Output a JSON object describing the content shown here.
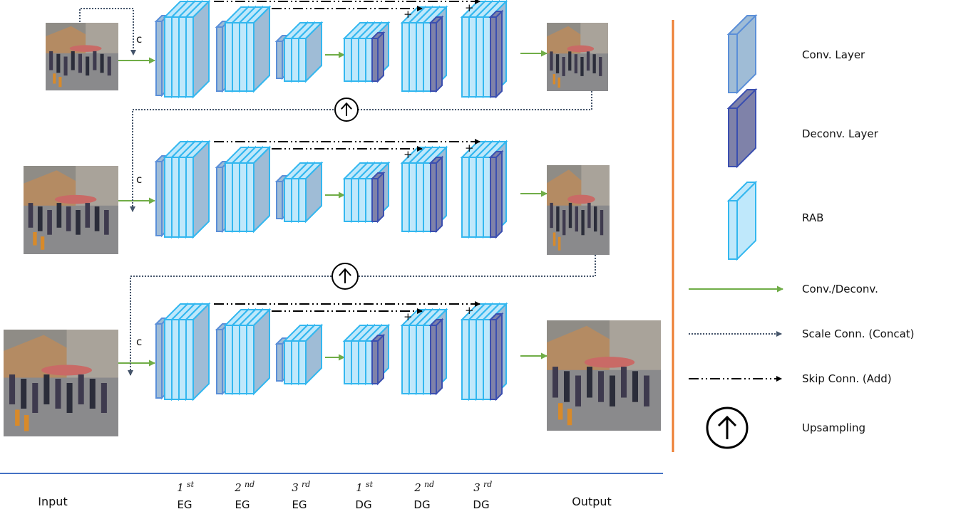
{
  "legend": {
    "conv_layer": "Conv. Layer",
    "deconv_layer": "Deconv. Layer",
    "rab": "RAB",
    "conv_deconv": "Conv./Deconv.",
    "scale_conn": "Scale Conn. (Concat)",
    "skip_conn": "Skip Conn. (Add)",
    "upsampling": "Upsampling"
  },
  "labels": {
    "input": "Input",
    "output": "Output",
    "concat_symbol": "c",
    "add_symbol": "+",
    "groups": [
      {
        "ord": "1",
        "sup": "st",
        "name": "EG"
      },
      {
        "ord": "2",
        "sup": "nd",
        "name": "EG"
      },
      {
        "ord": "3",
        "sup": "rd",
        "name": "EG"
      },
      {
        "ord": "1",
        "sup": "st",
        "name": "DG"
      },
      {
        "ord": "2",
        "sup": "nd",
        "name": "DG"
      },
      {
        "ord": "3",
        "sup": "rd",
        "name": "DG"
      }
    ]
  },
  "colors": {
    "conv_front": "#9fbcd6",
    "conv_edge": "#5b8fd8",
    "deconv_front": "#7f82a9",
    "deconv_edge": "#3b4fb0",
    "rab_front": "#bfe8fb",
    "rab_edge": "#33b7ef",
    "arrow_green": "#70ad47",
    "scale_dotted": "#44546a",
    "divider_orange": "#ed7d31",
    "baseline_blue": "#4472c4"
  }
}
